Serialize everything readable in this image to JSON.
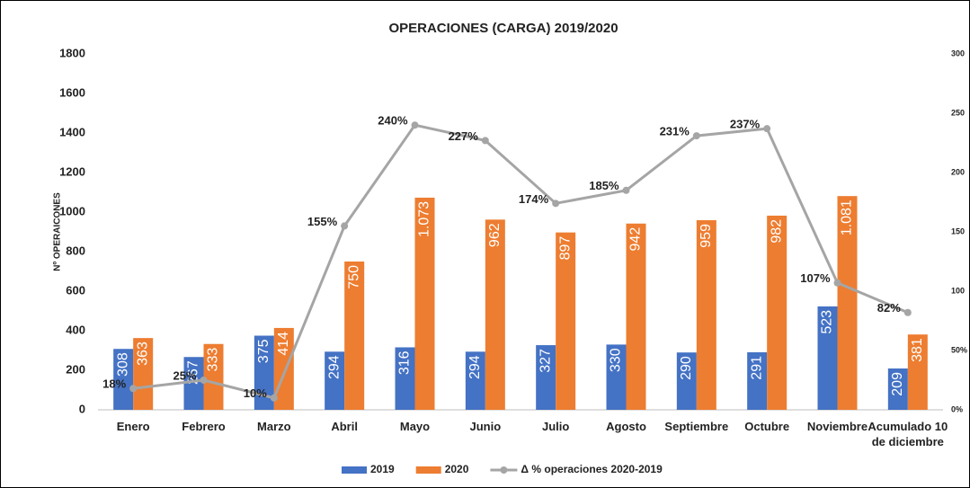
{
  "chart_data": {
    "type": "bar",
    "title": "OPERACIONES (CARGA) 2019/2020",
    "y_label": "Nº OPERAICONES",
    "categories": [
      "Enero",
      "Febrero",
      "Marzo",
      "Abril",
      "Mayo",
      "Junio",
      "Julio",
      "Agosto",
      "Septiembre",
      "Octubre",
      "Noviembre",
      "Acumulado 10 de diciembre"
    ],
    "series": [
      {
        "name": "2019",
        "color": "#4472c4",
        "values": [
          308,
          267,
          375,
          294,
          316,
          294,
          327,
          330,
          290,
          291,
          523,
          209
        ]
      },
      {
        "name": "2020",
        "color": "#ed7d31",
        "values": [
          363,
          333,
          414,
          750,
          1073,
          962,
          897,
          942,
          959,
          982,
          1081,
          381
        ],
        "value_labels": [
          "363",
          "333",
          "414",
          "750",
          "1.073",
          "962",
          "897",
          "942",
          "959",
          "982",
          "1.081",
          "381"
        ]
      },
      {
        "name": "Δ % operaciones 2020-2019",
        "type": "line",
        "axis": "y2",
        "color": "#a5a5a5",
        "values": [
          18,
          25,
          10,
          155,
          240,
          227,
          174,
          185,
          231,
          237,
          107,
          82
        ],
        "value_labels": [
          "18%",
          "25%",
          "10%",
          "155%",
          "240%",
          "227%",
          "174%",
          "185%",
          "231%",
          "237%",
          "107%",
          "82%"
        ]
      }
    ],
    "ylim": [
      0,
      1800
    ],
    "yticks": [
      0,
      200,
      400,
      600,
      800,
      1000,
      1200,
      1400,
      1600,
      1800
    ],
    "y2lim": [
      0,
      300
    ],
    "y2ticks": [
      {
        "value": 0,
        "label": "0%"
      },
      {
        "value": 50,
        "label": "50%"
      },
      100,
      150,
      200,
      250,
      300
    ],
    "legend": "bottom",
    "grid": false
  }
}
